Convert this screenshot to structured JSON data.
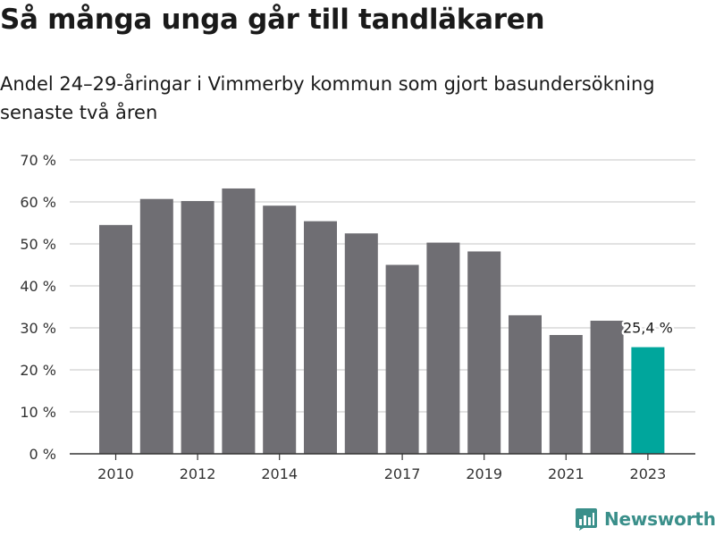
{
  "header": {
    "title": "Så många unga går till tandläkaren",
    "subtitle": "Andel 24–29-åringar i Vimmerby kommun som gjort basundersökning senaste två åren"
  },
  "brand": {
    "name": "Newsworthy",
    "color": "#3a8f8a"
  },
  "colors": {
    "bar": "#6f6e73",
    "highlight": "#00a69c",
    "grid": "#d9d9d9",
    "axis": "#333333"
  },
  "chart_data": {
    "type": "bar",
    "title": "Så många unga går till tandläkaren",
    "subtitle": "Andel 24–29-åringar i Vimmerby kommun som gjort basundersökning senaste två åren",
    "categories": [
      2010,
      2011,
      2012,
      2013,
      2014,
      2015,
      2016,
      2017,
      2018,
      2019,
      2020,
      2021,
      2022,
      2023
    ],
    "values": [
      54.5,
      60.7,
      60.2,
      63.2,
      59.1,
      55.4,
      52.5,
      45.0,
      50.3,
      48.2,
      33.0,
      28.3,
      31.7,
      25.4
    ],
    "highlight_index": 13,
    "highlight_label": "25,4 %",
    "x_tick_labels": [
      "2010",
      "2012",
      "2014",
      "2017",
      "2019",
      "2021",
      "2023"
    ],
    "x_tick_categories": [
      2010,
      2012,
      2014,
      2017,
      2019,
      2021,
      2023
    ],
    "y_ticks": [
      0,
      10,
      20,
      30,
      40,
      50,
      60,
      70
    ],
    "y_tick_labels": [
      "0 %",
      "10 %",
      "20 %",
      "30 %",
      "40 %",
      "50 %",
      "60 %",
      "70 %"
    ],
    "ylim": [
      0,
      70
    ],
    "grid": true,
    "xlabel": "",
    "ylabel": ""
  }
}
